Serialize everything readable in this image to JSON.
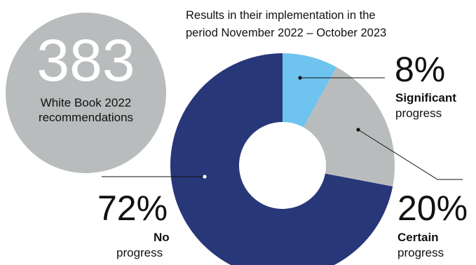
{
  "stat": {
    "number": "383",
    "caption_line1": "White Book 2022",
    "caption_line2": "recommendations"
  },
  "subtitle_line1": "Results in their implementation in the",
  "subtitle_line2": "period November 2022 – October 2023",
  "chart_data": {
    "type": "pie",
    "donut": true,
    "categories": [
      "Significant progress",
      "Certain progress",
      "No progress"
    ],
    "values": [
      8,
      20,
      72
    ],
    "unit": "%",
    "colors": [
      "#6ec3ef",
      "#b9bcbd",
      "#283778"
    ],
    "labels": [
      {
        "percent": "8%",
        "bold": "Significant",
        "rest": "progress"
      },
      {
        "percent": "20%",
        "bold": "Certain",
        "rest": "progress"
      },
      {
        "percent": "72%",
        "bold": "No",
        "rest": "progress"
      }
    ]
  }
}
